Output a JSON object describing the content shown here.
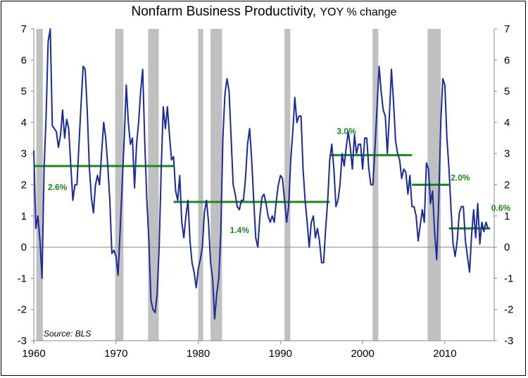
{
  "chart_data": {
    "type": "line",
    "title": "Nonfarm Business Productivity,",
    "subtitle": "YOY % change",
    "source": "Source: BLS",
    "ylim": [
      -3,
      7
    ],
    "xlim": [
      1960,
      2016
    ],
    "y_ticks": [
      -3,
      -2,
      -1,
      0,
      1,
      2,
      3,
      4,
      5,
      6,
      7
    ],
    "x_ticks": [
      1960,
      1970,
      1980,
      1990,
      2000,
      2010
    ],
    "grid": false,
    "secondary_y_axis": true,
    "colors": {
      "line": "#1a2a9a",
      "average": "#1a8a1a",
      "recession": "#c0c0c0"
    },
    "recessions": [
      [
        1960.3,
        1961.1
      ],
      [
        1969.9,
        1970.9
      ],
      [
        1973.9,
        1975.2
      ],
      [
        1980.0,
        1980.6
      ],
      [
        1981.5,
        1982.9
      ],
      [
        1990.5,
        1991.2
      ],
      [
        2001.2,
        2001.9
      ],
      [
        2007.9,
        2009.5
      ]
    ],
    "series": [
      {
        "values": [
          [
            1960.0,
            3.1
          ],
          [
            1960.25,
            0.6
          ],
          [
            1960.5,
            1.0
          ],
          [
            1960.75,
            0.2
          ],
          [
            1961.0,
            -1.0
          ],
          [
            1961.25,
            2.5
          ],
          [
            1961.5,
            4.2
          ],
          [
            1961.75,
            6.6
          ],
          [
            1962.0,
            7.0
          ],
          [
            1962.25,
            3.9
          ],
          [
            1962.5,
            3.8
          ],
          [
            1962.75,
            3.7
          ],
          [
            1963.0,
            3.2
          ],
          [
            1963.25,
            3.6
          ],
          [
            1963.5,
            4.4
          ],
          [
            1963.75,
            3.5
          ],
          [
            1964.0,
            4.1
          ],
          [
            1964.25,
            3.8
          ],
          [
            1964.5,
            2.6
          ],
          [
            1964.75,
            1.5
          ],
          [
            1965.0,
            2.0
          ],
          [
            1965.25,
            2.0
          ],
          [
            1965.5,
            3.3
          ],
          [
            1965.75,
            4.6
          ],
          [
            1966.0,
            5.8
          ],
          [
            1966.25,
            5.7
          ],
          [
            1966.5,
            4.4
          ],
          [
            1966.75,
            2.6
          ],
          [
            1967.0,
            1.6
          ],
          [
            1967.25,
            1.1
          ],
          [
            1967.5,
            2.0
          ],
          [
            1967.75,
            2.3
          ],
          [
            1968.0,
            2.0
          ],
          [
            1968.25,
            3.0
          ],
          [
            1968.5,
            4.0
          ],
          [
            1968.75,
            3.5
          ],
          [
            1969.0,
            2.6
          ],
          [
            1969.25,
            1.5
          ],
          [
            1969.5,
            -0.2
          ],
          [
            1969.75,
            -0.1
          ],
          [
            1970.0,
            -0.3
          ],
          [
            1970.25,
            -0.9
          ],
          [
            1970.5,
            0.5
          ],
          [
            1970.75,
            2.0
          ],
          [
            1971.0,
            3.5
          ],
          [
            1971.25,
            5.2
          ],
          [
            1971.5,
            4.0
          ],
          [
            1971.75,
            3.3
          ],
          [
            1972.0,
            3.5
          ],
          [
            1972.25,
            1.9
          ],
          [
            1972.5,
            3.3
          ],
          [
            1972.75,
            4.0
          ],
          [
            1973.0,
            5.0
          ],
          [
            1973.25,
            5.7
          ],
          [
            1973.5,
            3.3
          ],
          [
            1973.75,
            1.5
          ],
          [
            1974.0,
            0.2
          ],
          [
            1974.25,
            -1.7
          ],
          [
            1974.5,
            -2.0
          ],
          [
            1974.75,
            -2.1
          ],
          [
            1975.0,
            -1.5
          ],
          [
            1975.25,
            0.0
          ],
          [
            1975.5,
            2.5
          ],
          [
            1975.75,
            4.5
          ],
          [
            1976.0,
            3.8
          ],
          [
            1976.25,
            4.5
          ],
          [
            1976.5,
            3.6
          ],
          [
            1976.75,
            2.8
          ],
          [
            1977.0,
            2.9
          ],
          [
            1977.25,
            1.8
          ],
          [
            1977.5,
            1.5
          ],
          [
            1977.75,
            2.3
          ],
          [
            1978.0,
            0.8
          ],
          [
            1978.25,
            0.3
          ],
          [
            1978.5,
            1.0
          ],
          [
            1978.75,
            1.5
          ],
          [
            1979.0,
            0.2
          ],
          [
            1979.25,
            -0.5
          ],
          [
            1979.5,
            -0.8
          ],
          [
            1979.75,
            -1.3
          ],
          [
            1980.0,
            -0.7
          ],
          [
            1980.25,
            -0.4
          ],
          [
            1980.5,
            0.0
          ],
          [
            1980.75,
            1.1
          ],
          [
            1981.0,
            1.5
          ],
          [
            1981.25,
            0.8
          ],
          [
            1981.5,
            -0.5
          ],
          [
            1981.75,
            -1.0
          ],
          [
            1982.0,
            -2.3
          ],
          [
            1982.25,
            -1.5
          ],
          [
            1982.5,
            -1.0
          ],
          [
            1982.75,
            0.5
          ],
          [
            1983.0,
            3.5
          ],
          [
            1983.25,
            4.9
          ],
          [
            1983.5,
            5.4
          ],
          [
            1983.75,
            5.0
          ],
          [
            1984.0,
            3.5
          ],
          [
            1984.25,
            2.0
          ],
          [
            1984.5,
            1.7
          ],
          [
            1984.75,
            1.3
          ],
          [
            1985.0,
            1.2
          ],
          [
            1985.25,
            1.5
          ],
          [
            1985.5,
            1.5
          ],
          [
            1985.75,
            2.2
          ],
          [
            1986.0,
            3.3
          ],
          [
            1986.25,
            3.8
          ],
          [
            1986.5,
            2.8
          ],
          [
            1986.75,
            1.5
          ],
          [
            1987.0,
            0.3
          ],
          [
            1987.25,
            0.0
          ],
          [
            1987.5,
            1.0
          ],
          [
            1987.75,
            1.6
          ],
          [
            1988.0,
            1.7
          ],
          [
            1988.25,
            1.4
          ],
          [
            1988.5,
            1.0
          ],
          [
            1988.75,
            0.8
          ],
          [
            1989.0,
            1.0
          ],
          [
            1989.25,
            0.8
          ],
          [
            1989.5,
            1.5
          ],
          [
            1989.75,
            2.0
          ],
          [
            1990.0,
            2.3
          ],
          [
            1990.25,
            2.2
          ],
          [
            1990.5,
            1.5
          ],
          [
            1990.75,
            0.8
          ],
          [
            1991.0,
            1.3
          ],
          [
            1991.25,
            2.8
          ],
          [
            1991.5,
            3.7
          ],
          [
            1991.75,
            4.8
          ],
          [
            1992.0,
            4.0
          ],
          [
            1992.25,
            4.2
          ],
          [
            1992.5,
            4.2
          ],
          [
            1992.75,
            2.5
          ],
          [
            1993.0,
            1.5
          ],
          [
            1993.25,
            0.8
          ],
          [
            1993.5,
            0.0
          ],
          [
            1993.75,
            0.8
          ],
          [
            1994.0,
            1.0
          ],
          [
            1994.25,
            0.3
          ],
          [
            1994.5,
            0.6
          ],
          [
            1994.75,
            0.2
          ],
          [
            1995.0,
            -0.5
          ],
          [
            1995.25,
            -0.5
          ],
          [
            1995.5,
            0.6
          ],
          [
            1995.75,
            1.5
          ],
          [
            1996.0,
            2.8
          ],
          [
            1996.25,
            3.3
          ],
          [
            1996.5,
            2.5
          ],
          [
            1996.75,
            1.3
          ],
          [
            1997.0,
            1.5
          ],
          [
            1997.25,
            2.0
          ],
          [
            1997.5,
            3.0
          ],
          [
            1997.75,
            2.6
          ],
          [
            1998.0,
            3.2
          ],
          [
            1998.25,
            3.7
          ],
          [
            1998.5,
            3.2
          ],
          [
            1998.75,
            2.5
          ],
          [
            1999.0,
            3.6
          ],
          [
            1999.25,
            3.0
          ],
          [
            1999.5,
            3.3
          ],
          [
            1999.75,
            3.3
          ],
          [
            2000.0,
            2.5
          ],
          [
            2000.25,
            3.5
          ],
          [
            2000.5,
            3.5
          ],
          [
            2000.75,
            2.5
          ],
          [
            2001.0,
            2.0
          ],
          [
            2001.25,
            2.0
          ],
          [
            2001.5,
            3.2
          ],
          [
            2001.75,
            4.5
          ],
          [
            2002.0,
            5.8
          ],
          [
            2002.25,
            5.0
          ],
          [
            2002.5,
            4.4
          ],
          [
            2002.75,
            4.2
          ],
          [
            2003.0,
            3.0
          ],
          [
            2003.25,
            4.2
          ],
          [
            2003.5,
            5.7
          ],
          [
            2003.75,
            4.7
          ],
          [
            2004.0,
            3.4
          ],
          [
            2004.25,
            3.0
          ],
          [
            2004.5,
            2.8
          ],
          [
            2004.75,
            2.2
          ],
          [
            2005.0,
            2.5
          ],
          [
            2005.25,
            2.4
          ],
          [
            2005.5,
            1.7
          ],
          [
            2005.75,
            2.3
          ],
          [
            2006.0,
            1.3
          ],
          [
            2006.25,
            1.3
          ],
          [
            2006.5,
            1.0
          ],
          [
            2006.75,
            0.2
          ],
          [
            2007.0,
            0.7
          ],
          [
            2007.25,
            1.2
          ],
          [
            2007.5,
            0.8
          ],
          [
            2007.75,
            2.7
          ],
          [
            2008.0,
            2.5
          ],
          [
            2008.25,
            1.4
          ],
          [
            2008.5,
            1.8
          ],
          [
            2008.75,
            0.5
          ],
          [
            2009.0,
            -0.4
          ],
          [
            2009.25,
            1.5
          ],
          [
            2009.5,
            4.0
          ],
          [
            2009.75,
            5.4
          ],
          [
            2010.0,
            5.2
          ],
          [
            2010.25,
            3.5
          ],
          [
            2010.5,
            2.5
          ],
          [
            2010.75,
            1.2
          ],
          [
            2011.0,
            0.1
          ],
          [
            2011.25,
            -0.3
          ],
          [
            2011.5,
            0.2
          ],
          [
            2011.75,
            1.1
          ],
          [
            2012.0,
            1.3
          ],
          [
            2012.25,
            1.3
          ],
          [
            2012.5,
            0.2
          ],
          [
            2012.75,
            -0.3
          ],
          [
            2013.0,
            -0.8
          ],
          [
            2013.25,
            0.4
          ],
          [
            2013.5,
            1.2
          ],
          [
            2013.75,
            0.3
          ],
          [
            2014.0,
            1.4
          ],
          [
            2014.25,
            0.1
          ],
          [
            2014.5,
            0.8
          ],
          [
            2014.75,
            0.5
          ],
          [
            2015.0,
            0.8
          ],
          [
            2015.25,
            0.6
          ]
        ]
      }
    ],
    "averages": [
      {
        "label": "2.6%",
        "value": 2.6,
        "from": 1960.0,
        "to": 1977.0
      },
      {
        "label": "1.4%",
        "value": 1.45,
        "from": 1977.0,
        "to": 1996.0
      },
      {
        "label": "3.0%",
        "value": 2.95,
        "from": 1996.0,
        "to": 2006.0
      },
      {
        "label": "2.0%",
        "value": 2.0,
        "from": 2006.0,
        "to": 2010.5
      },
      {
        "label": "0.6%",
        "value": 0.6,
        "from": 2010.5,
        "to": 2015.5
      }
    ]
  }
}
